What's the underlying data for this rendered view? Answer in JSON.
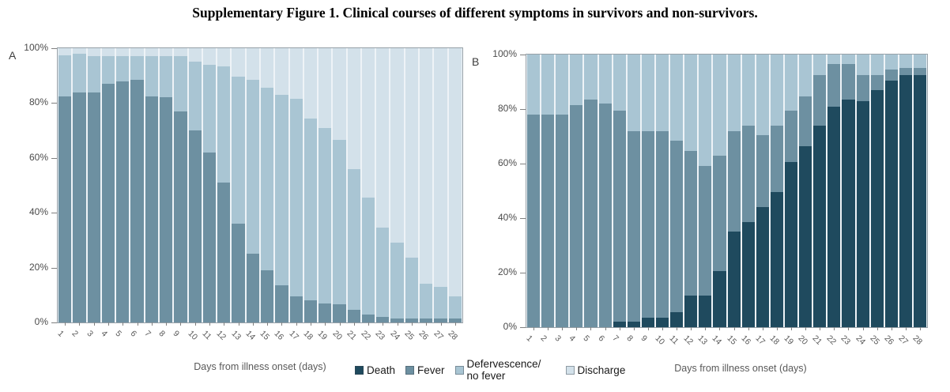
{
  "title": "Supplementary Figure 1. Clinical courses of different symptoms in survivors and non-survivors.",
  "panels": [
    {
      "label": "A",
      "x_axis_title": "Days from illness onset (days)"
    },
    {
      "label": "B",
      "x_axis_title": "Days from illness onset (days)"
    }
  ],
  "legend": {
    "position": "bottom-center",
    "items": [
      {
        "label": "Death",
        "color": "#1f4a5e"
      },
      {
        "label": "Fever",
        "color": "#6d90a1"
      },
      {
        "label": "Defervescence/ no fever",
        "color": "#a9c5d3"
      },
      {
        "label": "Discharge",
        "color": "#d3e1ea"
      }
    ]
  },
  "chart_data": [
    {
      "panel": "A",
      "type": "bar",
      "subtype": "stacked-100-percent",
      "x_axis_title": "Days from illness onset (days)",
      "ylim": [
        0,
        100
      ],
      "yticks": [
        0,
        20,
        40,
        60,
        80,
        100
      ],
      "ytick_suffix": "%",
      "grid": false,
      "categories": [
        1,
        2,
        3,
        4,
        5,
        6,
        7,
        8,
        9,
        10,
        11,
        12,
        13,
        14,
        15,
        16,
        17,
        18,
        19,
        20,
        21,
        22,
        23,
        24,
        25,
        26,
        27,
        28
      ],
      "series": [
        {
          "name": "Death",
          "color": "#1f4a5e",
          "values": [
            0,
            0,
            0,
            0,
            0,
            0,
            0,
            0,
            0,
            0,
            0,
            0,
            0,
            0,
            0,
            0,
            0,
            0,
            0,
            0,
            0,
            0,
            0,
            0,
            0,
            0,
            0,
            0
          ]
        },
        {
          "name": "Fever",
          "color": "#6d90a1",
          "values": [
            82.5,
            84,
            84,
            87,
            88,
            88.5,
            82.5,
            82,
            77,
            70,
            62,
            51,
            36,
            25,
            19,
            13.5,
            9.5,
            8,
            7,
            6.5,
            4.5,
            3,
            2,
            1.5,
            1.5,
            1.5,
            1.5,
            1.5
          ]
        },
        {
          "name": "Defervescence/no fever",
          "color": "#a9c5d3",
          "values": [
            15,
            14,
            13,
            10,
            9,
            8.5,
            14.5,
            15,
            20,
            25,
            32,
            42.5,
            53.5,
            63.5,
            66.5,
            69.5,
            72,
            66.5,
            64,
            60,
            51.5,
            42.5,
            32.5,
            27.5,
            22,
            12.5,
            11.5,
            8
          ]
        },
        {
          "name": "Discharge",
          "color": "#d3e1ea",
          "values": [
            2.5,
            2,
            3,
            3,
            3,
            3,
            3,
            3,
            3,
            5,
            6,
            6.5,
            10.5,
            11.5,
            14.5,
            17,
            18.5,
            25.5,
            29,
            33.5,
            44,
            54.5,
            65.5,
            71,
            76.5,
            86,
            87,
            90.5
          ]
        }
      ]
    },
    {
      "panel": "B",
      "type": "bar",
      "subtype": "stacked-100-percent",
      "x_axis_title": "Days from illness onset (days)",
      "ylim": [
        0,
        100
      ],
      "yticks": [
        0,
        20,
        40,
        60,
        80,
        100
      ],
      "ytick_suffix": "%",
      "grid": false,
      "categories": [
        1,
        2,
        3,
        4,
        5,
        6,
        7,
        8,
        9,
        10,
        11,
        12,
        13,
        14,
        15,
        16,
        17,
        18,
        19,
        20,
        21,
        22,
        23,
        24,
        25,
        26,
        27,
        28
      ],
      "series": [
        {
          "name": "Death",
          "color": "#1f4a5e",
          "values": [
            0,
            0,
            0,
            0,
            0,
            0,
            2,
            2,
            3.5,
            3.5,
            5.5,
            11.5,
            11.5,
            20.5,
            35,
            38.5,
            44,
            49.5,
            60.5,
            66.5,
            74,
            81,
            83.5,
            83,
            87,
            90.5,
            92.5,
            92.5
          ]
        },
        {
          "name": "Fever",
          "color": "#6d90a1",
          "values": [
            78,
            78,
            78,
            81.5,
            83.5,
            82,
            77.5,
            70,
            68.5,
            68.5,
            63,
            53,
            47.5,
            42.5,
            37,
            35.5,
            26.5,
            24.5,
            19,
            18,
            18.5,
            15.5,
            13,
            9.5,
            5.5,
            4,
            2.5,
            2.5
          ]
        },
        {
          "name": "Defervescence/no fever",
          "color": "#a9c5d3",
          "values": [
            22,
            22,
            22,
            18.5,
            16.5,
            18,
            20.5,
            28,
            28,
            28,
            31.5,
            35.5,
            41,
            37,
            28,
            26,
            29.5,
            26,
            20.5,
            15.5,
            7.5,
            3.5,
            3.5,
            7.5,
            7.5,
            5.5,
            5,
            5
          ]
        },
        {
          "name": "Discharge",
          "color": "#d3e1ea",
          "values": [
            0,
            0,
            0,
            0,
            0,
            0,
            0,
            0,
            0,
            0,
            0,
            0,
            0,
            0,
            0,
            0,
            0,
            0,
            0,
            0,
            0,
            0,
            0,
            0,
            0,
            0,
            0,
            0
          ]
        }
      ]
    }
  ]
}
